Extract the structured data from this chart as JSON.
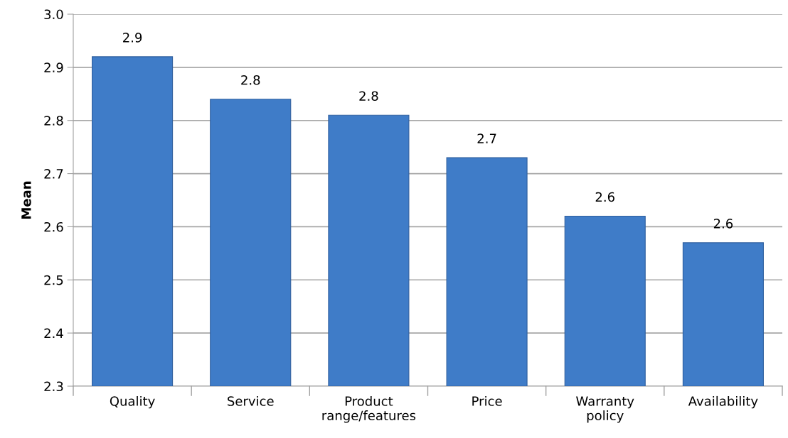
{
  "chart_data": {
    "type": "bar",
    "ylabel": "Mean",
    "categories": [
      "Quality",
      "Service",
      "Product\nrange/features",
      "Price",
      "Warranty\npolicy",
      "Availability"
    ],
    "values": [
      2.92,
      2.84,
      2.81,
      2.73,
      2.62,
      2.57
    ],
    "value_labels": [
      "2.9",
      "2.8",
      "2.8",
      "2.7",
      "2.6",
      "2.6"
    ],
    "color": "#3f7cc8",
    "ylim": [
      2.3,
      3.0
    ],
    "yticks": [
      {
        "value": 2.3,
        "label": "2.3"
      },
      {
        "value": 2.4,
        "label": "2.4"
      },
      {
        "value": 2.5,
        "label": "2.5"
      },
      {
        "value": 2.6,
        "label": "2.6"
      },
      {
        "value": 2.7,
        "label": "2.7"
      },
      {
        "value": 2.8,
        "label": "2.8"
      },
      {
        "value": 2.9,
        "label": "2.9"
      },
      {
        "value": 3.0,
        "label": "3.0"
      }
    ],
    "grid": "y",
    "legend": false
  }
}
